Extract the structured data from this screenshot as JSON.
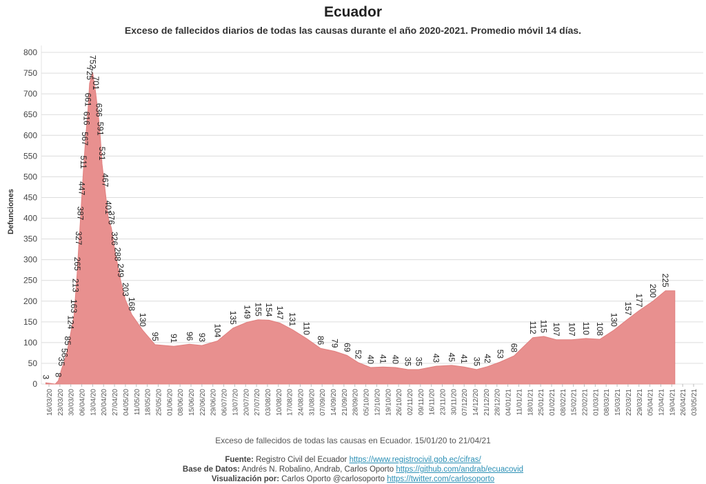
{
  "header": {
    "title": "Ecuador",
    "subtitle": "Exceso de fallecidos diarios de todas las causas durante el año 2020-2021. Promedio móvil 14 días."
  },
  "caption": "Exceso de fallecidos de todas las causas en Ecuador. 15/01/20 to 21/04/21",
  "credits": {
    "fuente_label": "Fuente:",
    "fuente_text": "Registro Civil del Ecuador",
    "fuente_link": "https://www.registrocivil.gob.ec/cifras/",
    "datos_label": "Base de Datos:",
    "datos_text": "Andrés N. Robalino, Andrab, Carlos Oporto",
    "datos_link": "https://github.com/andrab/ecuacovid",
    "viz_label": "Visualización por:",
    "viz_text": "Carlos Oporto @carlosoporto",
    "viz_link": "https://twitter.com/carlosoporto"
  },
  "colors": {
    "area": "#e8908f",
    "grid": "#dcdcdc",
    "text": "#222222"
  },
  "chart_data": {
    "type": "area",
    "ylabel": "Defunciones",
    "ylim": [
      0,
      800
    ],
    "yticks": [
      0,
      50,
      100,
      150,
      200,
      250,
      300,
      350,
      400,
      450,
      500,
      550,
      600,
      650,
      700,
      750,
      800
    ],
    "grid": true,
    "x_tick_labels": [
      "16/03/20",
      "23/03/20",
      "30/03/20",
      "06/04/20",
      "13/04/20",
      "20/04/20",
      "27/04/20",
      "04/05/20",
      "11/05/20",
      "18/05/20",
      "25/05/20",
      "01/06/20",
      "08/06/20",
      "15/06/20",
      "22/06/20",
      "29/06/20",
      "06/07/20",
      "13/07/20",
      "20/07/20",
      "27/07/20",
      "03/08/20",
      "10/08/20",
      "17/08/20",
      "24/08/20",
      "31/08/20",
      "07/09/20",
      "14/09/20",
      "21/09/20",
      "28/09/20",
      "05/10/20",
      "12/10/20",
      "19/10/20",
      "26/10/20",
      "02/11/20",
      "09/11/20",
      "16/11/20",
      "23/11/20",
      "30/11/20",
      "07/12/20",
      "14/12/20",
      "21/12/20",
      "28/12/20",
      "04/01/21",
      "11/01/21",
      "18/01/21",
      "25/01/21",
      "01/02/21",
      "08/02/21",
      "15/02/21",
      "22/02/21",
      "01/03/21",
      "08/03/21",
      "15/03/21",
      "22/03/21",
      "29/03/21",
      "05/04/21",
      "12/04/21",
      "19/04/21",
      "26/04/21",
      "03/05/21"
    ],
    "series": [
      {
        "points": [
          [
            "2020-03-14",
            3
          ],
          [
            "2020-03-20",
            0
          ],
          [
            "2020-03-22",
            8
          ],
          [
            "2020-03-24",
            35
          ],
          [
            "2020-03-26",
            56
          ],
          [
            "2020-03-28",
            85
          ],
          [
            "2020-03-30",
            124
          ],
          [
            "2020-04-01",
            163
          ],
          [
            "2020-04-02",
            213
          ],
          [
            "2020-04-03",
            265
          ],
          [
            "2020-04-04",
            327
          ],
          [
            "2020-04-05",
            387
          ],
          [
            "2020-04-06",
            447
          ],
          [
            "2020-04-07",
            511
          ],
          [
            "2020-04-08",
            567
          ],
          [
            "2020-04-09",
            616
          ],
          [
            "2020-04-10",
            661
          ],
          [
            "2020-04-11",
            725
          ],
          [
            "2020-04-13",
            752
          ],
          [
            "2020-04-15",
            701
          ],
          [
            "2020-04-17",
            636
          ],
          [
            "2020-04-18",
            591
          ],
          [
            "2020-04-19",
            531
          ],
          [
            "2020-04-21",
            467
          ],
          [
            "2020-04-23",
            401
          ],
          [
            "2020-04-25",
            376
          ],
          [
            "2020-04-27",
            326
          ],
          [
            "2020-04-29",
            288
          ],
          [
            "2020-05-01",
            249
          ],
          [
            "2020-05-04",
            203
          ],
          [
            "2020-05-08",
            168
          ],
          [
            "2020-05-15",
            130
          ],
          [
            "2020-05-23",
            95
          ],
          [
            "2020-06-04",
            91
          ],
          [
            "2020-06-14",
            96
          ],
          [
            "2020-06-22",
            93
          ],
          [
            "2020-07-02",
            104
          ],
          [
            "2020-07-12",
            135
          ],
          [
            "2020-07-21",
            149
          ],
          [
            "2020-07-28",
            155
          ],
          [
            "2020-08-04",
            154
          ],
          [
            "2020-08-11",
            147
          ],
          [
            "2020-08-19",
            131
          ],
          [
            "2020-08-28",
            110
          ],
          [
            "2020-09-06",
            86
          ],
          [
            "2020-09-15",
            79
          ],
          [
            "2020-09-23",
            69
          ],
          [
            "2020-09-30",
            52
          ],
          [
            "2020-10-08",
            40
          ],
          [
            "2020-10-16",
            41
          ],
          [
            "2020-10-24",
            40
          ],
          [
            "2020-11-01",
            35
          ],
          [
            "2020-11-08",
            35
          ],
          [
            "2020-11-19",
            43
          ],
          [
            "2020-11-29",
            45
          ],
          [
            "2020-12-07",
            41
          ],
          [
            "2020-12-15",
            35
          ],
          [
            "2020-12-22",
            42
          ],
          [
            "2020-12-30",
            53
          ],
          [
            "2021-01-08",
            68
          ],
          [
            "2021-01-20",
            112
          ],
          [
            "2021-01-27",
            115
          ],
          [
            "2021-02-04",
            107
          ],
          [
            "2021-02-14",
            107
          ],
          [
            "2021-02-23",
            110
          ],
          [
            "2021-03-04",
            108
          ],
          [
            "2021-03-13",
            130
          ],
          [
            "2021-03-22",
            157
          ],
          [
            "2021-03-29",
            177
          ],
          [
            "2021-04-07",
            200
          ],
          [
            "2021-04-15",
            225
          ],
          [
            "2021-04-21",
            225
          ]
        ]
      }
    ],
    "data_labels": [
      [
        "2020-03-14",
        3
      ],
      [
        "2020-03-22",
        8
      ],
      [
        "2020-03-24",
        35
      ],
      [
        "2020-03-26",
        56
      ],
      [
        "2020-03-28",
        85
      ],
      [
        "2020-03-30",
        124
      ],
      [
        "2020-04-01",
        163
      ],
      [
        "2020-04-02",
        213
      ],
      [
        "2020-04-03",
        265
      ],
      [
        "2020-04-04",
        327
      ],
      [
        "2020-04-05",
        387
      ],
      [
        "2020-04-06",
        447
      ],
      [
        "2020-04-07",
        511
      ],
      [
        "2020-04-08",
        567
      ],
      [
        "2020-04-09",
        616
      ],
      [
        "2020-04-10",
        661
      ],
      [
        "2020-04-11",
        725
      ],
      [
        "2020-04-13",
        752
      ],
      [
        "2020-04-15",
        701
      ],
      [
        "2020-04-17",
        636
      ],
      [
        "2020-04-18",
        591
      ],
      [
        "2020-04-19",
        531
      ],
      [
        "2020-04-21",
        467
      ],
      [
        "2020-04-23",
        401
      ],
      [
        "2020-04-25",
        376
      ],
      [
        "2020-04-27",
        326
      ],
      [
        "2020-04-29",
        288
      ],
      [
        "2020-05-01",
        249
      ],
      [
        "2020-05-04",
        203
      ],
      [
        "2020-05-08",
        168
      ],
      [
        "2020-05-15",
        130
      ],
      [
        "2020-05-23",
        95
      ],
      [
        "2020-06-04",
        91
      ],
      [
        "2020-06-14",
        96
      ],
      [
        "2020-06-22",
        93
      ],
      [
        "2020-07-02",
        104
      ],
      [
        "2020-07-12",
        135
      ],
      [
        "2020-07-21",
        149
      ],
      [
        "2020-07-28",
        155
      ],
      [
        "2020-08-04",
        154
      ],
      [
        "2020-08-11",
        147
      ],
      [
        "2020-08-19",
        131
      ],
      [
        "2020-08-28",
        110
      ],
      [
        "2020-09-06",
        86
      ],
      [
        "2020-09-15",
        79
      ],
      [
        "2020-09-23",
        69
      ],
      [
        "2020-09-30",
        52
      ],
      [
        "2020-10-08",
        40
      ],
      [
        "2020-10-16",
        41
      ],
      [
        "2020-10-24",
        40
      ],
      [
        "2020-11-01",
        35
      ],
      [
        "2020-11-08",
        35
      ],
      [
        "2020-11-19",
        43
      ],
      [
        "2020-11-29",
        45
      ],
      [
        "2020-12-07",
        41
      ],
      [
        "2020-12-15",
        35
      ],
      [
        "2020-12-22",
        42
      ],
      [
        "2020-12-30",
        53
      ],
      [
        "2021-01-08",
        68
      ],
      [
        "2021-01-20",
        112
      ],
      [
        "2021-01-27",
        115
      ],
      [
        "2021-02-04",
        107
      ],
      [
        "2021-02-14",
        107
      ],
      [
        "2021-02-23",
        110
      ],
      [
        "2021-03-04",
        108
      ],
      [
        "2021-03-13",
        130
      ],
      [
        "2021-03-22",
        157
      ],
      [
        "2021-03-29",
        177
      ],
      [
        "2021-04-07",
        200
      ],
      [
        "2021-04-15",
        225
      ]
    ]
  }
}
